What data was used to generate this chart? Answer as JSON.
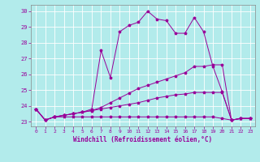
{
  "xlabel": "Windchill (Refroidissement éolien,°C)",
  "background_color": "#b2ebeb",
  "grid_color": "#ffffff",
  "line_color": "#990099",
  "xlim": [
    -0.5,
    23.5
  ],
  "ylim": [
    22.7,
    30.4
  ],
  "xticks": [
    0,
    1,
    2,
    3,
    4,
    5,
    6,
    7,
    8,
    9,
    10,
    11,
    12,
    13,
    14,
    15,
    16,
    17,
    18,
    19,
    20,
    21,
    22,
    23
  ],
  "yticks": [
    23,
    24,
    25,
    26,
    27,
    28,
    29,
    30
  ],
  "line1": [
    23.8,
    23.1,
    23.3,
    23.4,
    23.5,
    23.6,
    23.8,
    27.5,
    25.8,
    28.7,
    29.1,
    29.3,
    30.0,
    29.5,
    29.4,
    28.6,
    28.6,
    29.6,
    28.7,
    26.5,
    24.9,
    23.1,
    23.2,
    23.2
  ],
  "line2": [
    23.8,
    23.1,
    23.3,
    23.4,
    23.5,
    23.6,
    23.7,
    23.9,
    24.2,
    24.5,
    24.8,
    25.1,
    25.3,
    25.5,
    25.7,
    25.9,
    26.1,
    26.5,
    26.5,
    26.6,
    26.6,
    23.1,
    23.2,
    23.2
  ],
  "line3": [
    23.8,
    23.1,
    23.3,
    23.4,
    23.5,
    23.6,
    23.7,
    23.8,
    23.9,
    24.0,
    24.1,
    24.2,
    24.35,
    24.5,
    24.6,
    24.7,
    24.75,
    24.85,
    24.85,
    24.85,
    24.85,
    23.1,
    23.2,
    23.2
  ],
  "line4": [
    23.8,
    23.1,
    23.3,
    23.3,
    23.3,
    23.3,
    23.3,
    23.3,
    23.3,
    23.3,
    23.3,
    23.3,
    23.3,
    23.3,
    23.3,
    23.3,
    23.3,
    23.3,
    23.3,
    23.3,
    23.2,
    23.1,
    23.2,
    23.2
  ]
}
